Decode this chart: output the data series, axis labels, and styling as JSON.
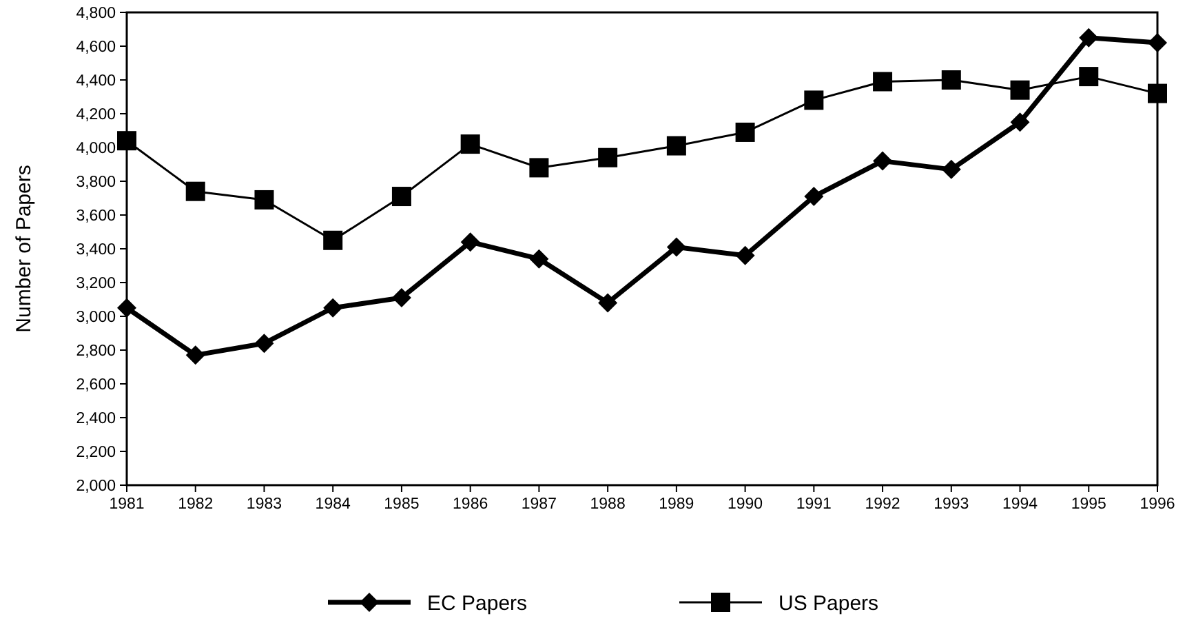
{
  "chart_data": {
    "type": "line",
    "ylabel": "Number of Papers",
    "categories": [
      "1981",
      "1982",
      "1983",
      "1984",
      "1985",
      "1986",
      "1987",
      "1988",
      "1989",
      "1990",
      "1991",
      "1992",
      "1993",
      "1994",
      "1995",
      "1996"
    ],
    "series": [
      {
        "name": "EC Papers",
        "color": "#000000",
        "marker": "diamond",
        "values": [
          3050,
          2770,
          2840,
          3050,
          3110,
          3440,
          3340,
          3080,
          3410,
          3360,
          3710,
          3920,
          3870,
          4150,
          4650,
          4620
        ]
      },
      {
        "name": "US Papers",
        "color": "#000000",
        "marker": "square",
        "values": [
          4040,
          3740,
          3690,
          3450,
          3710,
          4020,
          3880,
          3940,
          4010,
          4090,
          4280,
          4390,
          4400,
          4340,
          4420,
          4320
        ]
      }
    ],
    "ylim": [
      2000,
      4800
    ],
    "yticks": [
      {
        "value": 2000,
        "label": "2,000"
      },
      {
        "value": 2200,
        "label": "2,200"
      },
      {
        "value": 2400,
        "label": "2,400"
      },
      {
        "value": 2600,
        "label": "2,600"
      },
      {
        "value": 2800,
        "label": "2,800"
      },
      {
        "value": 3000,
        "label": "3,000"
      },
      {
        "value": 3200,
        "label": "3,200"
      },
      {
        "value": 3400,
        "label": "3,400"
      },
      {
        "value": 3600,
        "label": "3,600"
      },
      {
        "value": 3800,
        "label": "3,800"
      },
      {
        "value": 4000,
        "label": "4,000"
      },
      {
        "value": 4200,
        "label": "4,200"
      },
      {
        "value": 4400,
        "label": "4,400"
      },
      {
        "value": 4600,
        "label": "4,600"
      },
      {
        "value": 4800,
        "label": "4,800"
      }
    ],
    "grid": false,
    "legend": "bottom"
  }
}
